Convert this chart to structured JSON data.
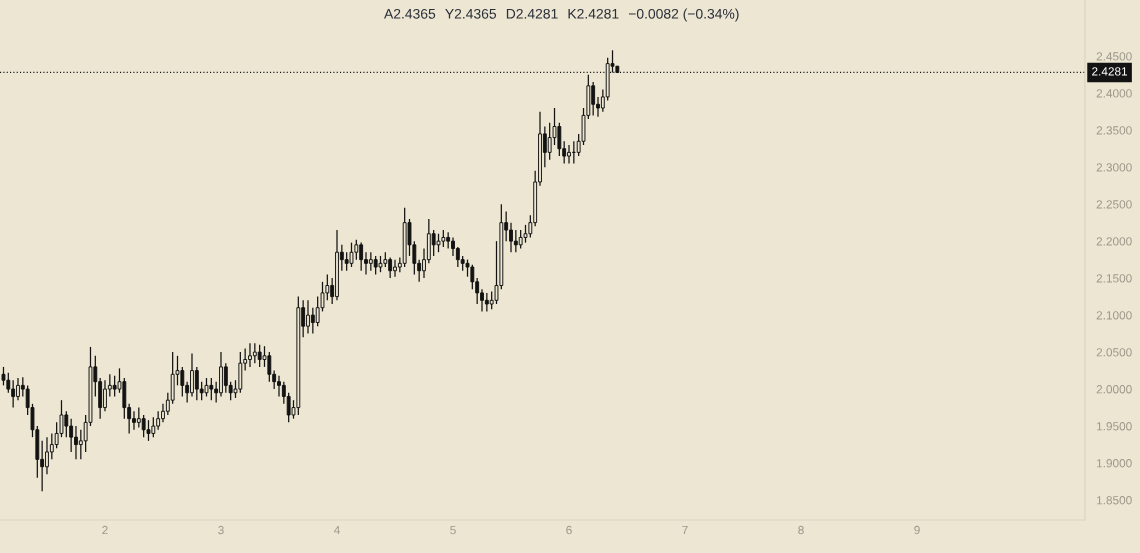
{
  "chart_data": {
    "type": "candlestick",
    "annotations": [
      "A2.4365",
      "Y2.4365",
      "D2.4281",
      "K2.4281",
      "−0.0082 (−0.34%)"
    ],
    "color": "#131313",
    "x": [
      1.125,
      1.1667,
      1.2083,
      1.25,
      1.2917,
      1.3333,
      1.375,
      1.4167,
      1.4583,
      1.5,
      1.5417,
      1.5833,
      1.625,
      1.6667,
      1.7083,
      1.75,
      1.7917,
      1.8333,
      1.875,
      1.9167,
      1.9583,
      2.0,
      2.0417,
      2.0833,
      2.125,
      2.1667,
      2.2083,
      2.25,
      2.2917,
      2.3333,
      2.375,
      2.4167,
      2.4583,
      2.5,
      2.5417,
      2.5833,
      2.625,
      2.6667,
      2.7083,
      2.75,
      2.7917,
      2.8333,
      2.875,
      2.9167,
      2.9583,
      3.0,
      3.0417,
      3.0833,
      3.125,
      3.1667,
      3.2083,
      3.25,
      3.2917,
      3.3333,
      3.375,
      3.4167,
      3.4583,
      3.5,
      3.5417,
      3.5833,
      3.625,
      3.6667,
      3.7083,
      3.75,
      3.7917,
      3.8333,
      3.875,
      3.9167,
      3.9583,
      4.0,
      4.0417,
      4.0833,
      4.125,
      4.1667,
      4.2083,
      4.25,
      4.2917,
      4.3333,
      4.375,
      4.4167,
      4.4583,
      4.5,
      4.5417,
      4.5833,
      4.625,
      4.6667,
      4.7083,
      4.75,
      4.7917,
      4.8333,
      4.875,
      4.9167,
      4.9583,
      5.0,
      5.0417,
      5.0833,
      5.125,
      5.1667,
      5.2083,
      5.25,
      5.2917,
      5.3333,
      5.375,
      5.4167,
      5.4583,
      5.5,
      5.5417,
      5.5833,
      5.625,
      5.6667,
      5.7083,
      5.75,
      5.7917,
      5.8333,
      5.875,
      5.9167,
      5.9583,
      6.0,
      6.0417,
      6.0833,
      6.125,
      6.1667,
      6.2083,
      6.25,
      6.2917,
      6.3333,
      6.375,
      6.4167
    ],
    "ohlc": [
      [
        2.02,
        2.03,
        2.005,
        2.012
      ],
      [
        2.012,
        2.022,
        1.995,
        2.0
      ],
      [
        2.0,
        2.012,
        1.975,
        1.99
      ],
      [
        1.99,
        2.015,
        1.985,
        2.005
      ],
      [
        2.005,
        2.016,
        1.99,
        2.0
      ],
      [
        2.0,
        2.005,
        1.965,
        1.975
      ],
      [
        1.975,
        1.98,
        1.935,
        1.945
      ],
      [
        1.945,
        1.95,
        1.88,
        1.905
      ],
      [
        1.905,
        1.93,
        1.862,
        1.895
      ],
      [
        1.895,
        1.935,
        1.885,
        1.915
      ],
      [
        1.915,
        1.94,
        1.905,
        1.925
      ],
      [
        1.925,
        1.955,
        1.92,
        1.94
      ],
      [
        1.94,
        1.985,
        1.935,
        1.965
      ],
      [
        1.965,
        1.97,
        1.935,
        1.95
      ],
      [
        1.95,
        1.96,
        1.915,
        1.935
      ],
      [
        1.935,
        1.95,
        1.905,
        1.925
      ],
      [
        1.925,
        1.945,
        1.905,
        1.93
      ],
      [
        1.93,
        1.965,
        1.915,
        1.955
      ],
      [
        1.955,
        2.057,
        1.95,
        2.03
      ],
      [
        2.03,
        2.045,
        1.99,
        2.01
      ],
      [
        2.01,
        2.015,
        1.96,
        1.975
      ],
      [
        1.975,
        2.012,
        1.97,
        2.0
      ],
      [
        2.0,
        2.02,
        1.99,
        2.005
      ],
      [
        2.005,
        2.018,
        1.99,
        2.0
      ],
      [
        2.0,
        2.028,
        1.995,
        2.01
      ],
      [
        2.01,
        2.015,
        1.96,
        1.975
      ],
      [
        1.975,
        1.98,
        1.94,
        1.96
      ],
      [
        1.96,
        1.97,
        1.945,
        1.955
      ],
      [
        1.955,
        1.975,
        1.948,
        1.96
      ],
      [
        1.96,
        1.965,
        1.935,
        1.945
      ],
      [
        1.945,
        1.958,
        1.93,
        1.94
      ],
      [
        1.94,
        1.962,
        1.935,
        1.95
      ],
      [
        1.95,
        1.97,
        1.945,
        1.96
      ],
      [
        1.96,
        1.98,
        1.955,
        1.97
      ],
      [
        1.97,
        1.995,
        1.965,
        1.985
      ],
      [
        1.985,
        2.05,
        1.98,
        2.02
      ],
      [
        2.02,
        2.045,
        2.005,
        2.025
      ],
      [
        2.025,
        2.03,
        1.99,
        2.005
      ],
      [
        2.005,
        2.01,
        1.982,
        1.995
      ],
      [
        1.995,
        2.048,
        1.99,
        2.025
      ],
      [
        2.025,
        2.03,
        1.985,
        2.0
      ],
      [
        2.0,
        2.01,
        1.985,
        1.995
      ],
      [
        1.995,
        2.015,
        1.99,
        2.005
      ],
      [
        2.005,
        2.015,
        1.985,
        2.0
      ],
      [
        2.0,
        2.01,
        1.982,
        1.995
      ],
      [
        1.995,
        2.05,
        1.99,
        2.03
      ],
      [
        2.03,
        2.035,
        1.995,
        2.005
      ],
      [
        2.005,
        2.01,
        1.985,
        1.995
      ],
      [
        1.995,
        2.012,
        1.988,
        2.0
      ],
      [
        2.0,
        2.05,
        1.995,
        2.035
      ],
      [
        2.035,
        2.055,
        2.025,
        2.04
      ],
      [
        2.04,
        2.062,
        2.03,
        2.045
      ],
      [
        2.045,
        2.062,
        2.035,
        2.05
      ],
      [
        2.05,
        2.06,
        2.03,
        2.04
      ],
      [
        2.04,
        2.058,
        2.03,
        2.045
      ],
      [
        2.045,
        2.05,
        2.01,
        2.02
      ],
      [
        2.02,
        2.025,
        2.0,
        2.01
      ],
      [
        2.01,
        2.018,
        1.99,
        2.005
      ],
      [
        2.005,
        2.01,
        1.98,
        1.99
      ],
      [
        1.99,
        1.995,
        1.955,
        1.965
      ],
      [
        1.965,
        1.985,
        1.96,
        1.975
      ],
      [
        1.975,
        2.125,
        1.965,
        2.11
      ],
      [
        2.11,
        2.12,
        2.07,
        2.085
      ],
      [
        2.085,
        2.12,
        2.075,
        2.1
      ],
      [
        2.1,
        2.11,
        2.075,
        2.09
      ],
      [
        2.09,
        2.125,
        2.085,
        2.11
      ],
      [
        2.11,
        2.145,
        2.105,
        2.13
      ],
      [
        2.13,
        2.155,
        2.12,
        2.14
      ],
      [
        2.14,
        2.15,
        2.115,
        2.125
      ],
      [
        2.125,
        2.215,
        2.12,
        2.185
      ],
      [
        2.185,
        2.195,
        2.16,
        2.175
      ],
      [
        2.175,
        2.185,
        2.16,
        2.17
      ],
      [
        2.17,
        2.198,
        2.165,
        2.185
      ],
      [
        2.185,
        2.202,
        2.175,
        2.195
      ],
      [
        2.195,
        2.198,
        2.16,
        2.175
      ],
      [
        2.175,
        2.185,
        2.155,
        2.17
      ],
      [
        2.17,
        2.185,
        2.16,
        2.175
      ],
      [
        2.175,
        2.18,
        2.155,
        2.165
      ],
      [
        2.165,
        2.18,
        2.158,
        2.17
      ],
      [
        2.17,
        2.185,
        2.165,
        2.175
      ],
      [
        2.175,
        2.178,
        2.15,
        2.16
      ],
      [
        2.16,
        2.175,
        2.152,
        2.165
      ],
      [
        2.165,
        2.178,
        2.158,
        2.17
      ],
      [
        2.17,
        2.245,
        2.165,
        2.225
      ],
      [
        2.225,
        2.23,
        2.18,
        2.195
      ],
      [
        2.195,
        2.2,
        2.155,
        2.17
      ],
      [
        2.17,
        2.175,
        2.145,
        2.16
      ],
      [
        2.16,
        2.19,
        2.15,
        2.175
      ],
      [
        2.175,
        2.23,
        2.17,
        2.21
      ],
      [
        2.21,
        2.215,
        2.18,
        2.195
      ],
      [
        2.195,
        2.21,
        2.185,
        2.2
      ],
      [
        2.2,
        2.215,
        2.192,
        2.205
      ],
      [
        2.205,
        2.212,
        2.19,
        2.2
      ],
      [
        2.2,
        2.205,
        2.18,
        2.19
      ],
      [
        2.19,
        2.192,
        2.165,
        2.175
      ],
      [
        2.175,
        2.18,
        2.16,
        2.17
      ],
      [
        2.17,
        2.175,
        2.152,
        2.165
      ],
      [
        2.165,
        2.168,
        2.135,
        2.145
      ],
      [
        2.145,
        2.15,
        2.115,
        2.13
      ],
      [
        2.13,
        2.135,
        2.105,
        2.12
      ],
      [
        2.12,
        2.13,
        2.105,
        2.115
      ],
      [
        2.115,
        2.132,
        2.108,
        2.12
      ],
      [
        2.12,
        2.2,
        2.115,
        2.14
      ],
      [
        2.14,
        2.25,
        2.135,
        2.225
      ],
      [
        2.225,
        2.24,
        2.2,
        2.215
      ],
      [
        2.215,
        2.225,
        2.185,
        2.2
      ],
      [
        2.2,
        2.215,
        2.185,
        2.195
      ],
      [
        2.195,
        2.215,
        2.19,
        2.205
      ],
      [
        2.205,
        2.222,
        2.198,
        2.21
      ],
      [
        2.21,
        2.235,
        2.205,
        2.225
      ],
      [
        2.225,
        2.295,
        2.22,
        2.28
      ],
      [
        2.28,
        2.375,
        2.275,
        2.345
      ],
      [
        2.345,
        2.355,
        2.3,
        2.32
      ],
      [
        2.32,
        2.36,
        2.31,
        2.34
      ],
      [
        2.34,
        2.38,
        2.33,
        2.355
      ],
      [
        2.355,
        2.36,
        2.315,
        2.325
      ],
      [
        2.325,
        2.335,
        2.305,
        2.315
      ],
      [
        2.315,
        2.33,
        2.305,
        2.32
      ],
      [
        2.32,
        2.335,
        2.305,
        2.32
      ],
      [
        2.32,
        2.345,
        2.315,
        2.335
      ],
      [
        2.335,
        2.38,
        2.33,
        2.37
      ],
      [
        2.37,
        2.425,
        2.365,
        2.41
      ],
      [
        2.41,
        2.415,
        2.37,
        2.385
      ],
      [
        2.385,
        2.395,
        2.368,
        2.38
      ],
      [
        2.38,
        2.405,
        2.375,
        2.395
      ],
      [
        2.395,
        2.448,
        2.39,
        2.44
      ],
      [
        2.44,
        2.458,
        2.428,
        2.4365
      ],
      [
        2.4365,
        2.4365,
        2.4281,
        2.4281
      ]
    ],
    "xlim": [
      1.095,
      10.448
    ],
    "xticks": [
      2,
      3,
      4,
      5,
      6,
      7,
      8,
      9
    ],
    "ylim": [
      1.823,
      2.526
    ],
    "yticks": [
      {
        "value": 1.85,
        "label": "1.8500"
      },
      {
        "value": 1.9,
        "label": "1.9000"
      },
      {
        "value": 1.95,
        "label": "1.9500"
      },
      {
        "value": 2.0,
        "label": "2.0000"
      },
      {
        "value": 2.05,
        "label": "2.0500"
      },
      {
        "value": 2.1,
        "label": "2.1000"
      },
      {
        "value": 2.15,
        "label": "2.1500"
      },
      {
        "value": 2.2,
        "label": "2.2000"
      },
      {
        "value": 2.25,
        "label": "2.2500"
      },
      {
        "value": 2.3,
        "label": "2.3000"
      },
      {
        "value": 2.35,
        "label": "2.3500"
      },
      {
        "value": 2.4,
        "label": "2.4000"
      },
      {
        "value": 2.45,
        "label": "2.4500"
      }
    ],
    "ref_lines": [
      {
        "axis": "y",
        "value": 2.4281,
        "label": "2.4281",
        "color": "#131313",
        "line_style": "dotted"
      }
    ]
  }
}
